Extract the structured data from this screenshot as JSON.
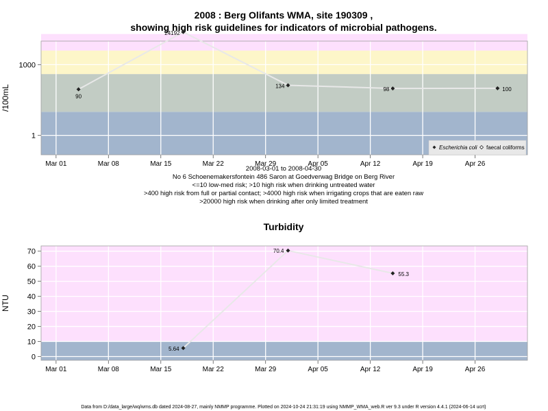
{
  "chart_data": [
    {
      "type": "line",
      "title": "2008 : Berg Olifants WMA, site 190309 ,",
      "subtitle": "showing high risk guidelines for indicators of microbial pathogens.",
      "ylabel": "/100mL",
      "yscale": "log",
      "ylim": [
        0.15,
        10000
      ],
      "y_ticks": [
        {
          "value": 1,
          "label": "1"
        },
        {
          "value": 1000,
          "label": "1000"
        }
      ],
      "x_ticks": [
        "Mar 01",
        "Mar 08",
        "Mar 15",
        "Mar 22",
        "Mar 29",
        "Apr 05",
        "Apr 12",
        "Apr 19",
        "Apr 26"
      ],
      "xlim": [
        "2008-02-28",
        "2008-05-03"
      ],
      "bands": [
        {
          "from": 0.15,
          "to": 10,
          "color": "#a2b5cd"
        },
        {
          "from": 10,
          "to": 400,
          "color": "#c2ccc4"
        },
        {
          "from": 400,
          "to": 4000,
          "color": "#fdf6c9"
        },
        {
          "from": 4000,
          "to": 20000,
          "color": "#fde0fd"
        },
        {
          "from": 20000,
          "to": 10000,
          "color": "#ffb6c1"
        }
      ],
      "band_colors": {
        "low": "#a2b5cd",
        "medium": "#c2ccc4",
        "irrigation": "#fdf6c9",
        "contact": "#fde0fd",
        "limited_treatment": "#ffb6c1"
      },
      "series": [
        {
          "name": "Escherichia coli",
          "marker": "filled-diamond",
          "points": [
            {
              "x": "2008-03-04",
              "y": 90,
              "label": "90"
            },
            {
              "x": "2008-03-18",
              "y": 24192,
              "label": "24192"
            },
            {
              "x": "2008-04-01",
              "y": 134,
              "label": "134"
            },
            {
              "x": "2008-04-15",
              "y": 98,
              "label": "98"
            },
            {
              "x": "2008-04-29",
              "y": 100,
              "label": "100"
            }
          ]
        },
        {
          "name": "faecal coliforms",
          "marker": "open-diamond",
          "points": []
        }
      ],
      "line_color": "#e8e8e8",
      "legend_position": "bottom-right",
      "notes": [
        "2008-03-01 to 2008-04-30",
        "No 6 Schoenemakersfontein 486 Saron at Goedverwag Bridge on Berg River",
        "<=10 low-med risk; >10 high risk when drinking untreated water",
        ">400 high risk from full or partial contact; >4000 high risk when irrigating crops that are eaten raw",
        ">20000 high risk when drinking after only limited treatment"
      ]
    },
    {
      "type": "line",
      "title": "Turbidity",
      "ylabel": "NTU",
      "ylim": [
        -2.5,
        73.5
      ],
      "y_ticks": [
        0,
        10,
        20,
        30,
        40,
        50,
        60,
        70
      ],
      "x_ticks": [
        "Mar 01",
        "Mar 08",
        "Mar 15",
        "Mar 22",
        "Mar 29",
        "Apr 05",
        "Apr 12",
        "Apr 19",
        "Apr 26"
      ],
      "xlim": [
        "2008-02-28",
        "2008-05-03"
      ],
      "bands": [
        {
          "from": -2.5,
          "to": 10,
          "color": "#a2b5cd"
        },
        {
          "from": 10,
          "to": 73.5,
          "color": "#fde0fd"
        }
      ],
      "series": [
        {
          "name": "Turbidity",
          "marker": "filled-diamond",
          "points": [
            {
              "x": "2008-03-18",
              "y": 5.64,
              "label": "5.64"
            },
            {
              "x": "2008-04-01",
              "y": 70.4,
              "label": "70.4"
            },
            {
              "x": "2008-04-15",
              "y": 55.3,
              "label": "55.3"
            }
          ]
        }
      ],
      "line_color": "#e8e8e8"
    }
  ],
  "footer": "Data from D:/data_large/wq/wms.db dated 2024-08-27, mainly NMMP programme. Plotted on 2024-10-24 21:31:19 using NMMP_WMA_web.R ver 9.3 under R version 4.4.1 (2024-06-14 ucrt)"
}
